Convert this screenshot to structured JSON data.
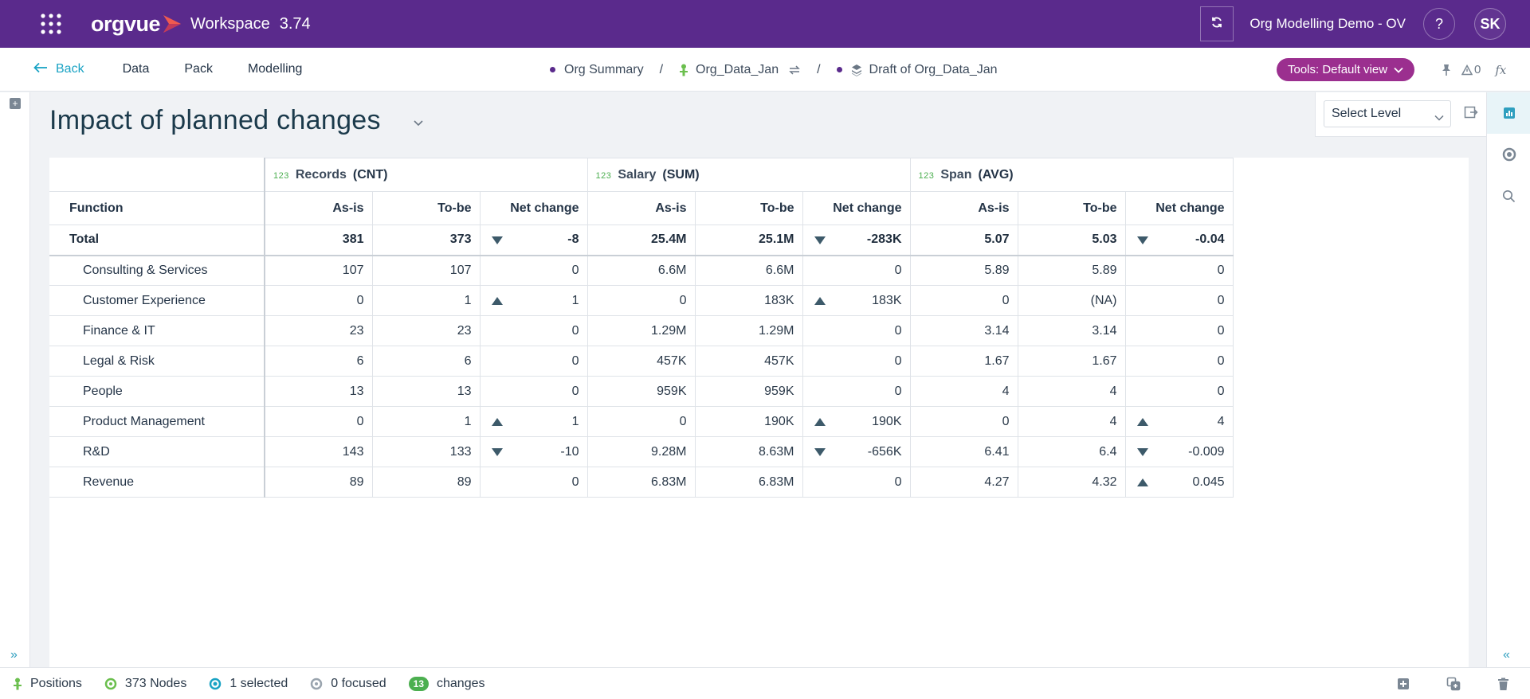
{
  "topbar": {
    "logo_text": "orgvue",
    "workspace_label": "Workspace",
    "version": "3.74",
    "org_title": "Org Modelling Demo - OV",
    "help_label": "?",
    "avatar_initials": "SK"
  },
  "nav": {
    "back_label": "Back",
    "items": [
      "Data",
      "Pack",
      "Modelling"
    ],
    "breadcrumb": {
      "summary": "Org Summary",
      "dataset": "Org_Data_Jan",
      "draft": "Draft of Org_Data_Jan",
      "separator": "/"
    },
    "tools_label": "Tools: Default view",
    "alert_count": "0",
    "fx_label": "fx"
  },
  "page": {
    "title": "Impact of planned changes",
    "level_select": "Select Level"
  },
  "table": {
    "function_header": "Function",
    "type_marker": "123",
    "groups": [
      {
        "name": "Records",
        "agg": "(CNT)"
      },
      {
        "name": "Salary",
        "agg": "(SUM)"
      },
      {
        "name": "Span",
        "agg": "(AVG)"
      }
    ],
    "subheaders": [
      "As-is",
      "To-be",
      "Net change"
    ],
    "total": {
      "label": "Total",
      "records": [
        "381",
        "373",
        "-8"
      ],
      "salary": [
        "25.4M",
        "25.1M",
        "-283K"
      ],
      "span": [
        "5.07",
        "5.03",
        "-0.04"
      ],
      "directions": [
        "down",
        "down",
        "down"
      ]
    },
    "rows": [
      {
        "name": "Consulting & Services",
        "records": [
          "107",
          "107",
          "0"
        ],
        "salary": [
          "6.6M",
          "6.6M",
          "0"
        ],
        "span": [
          "5.89",
          "5.89",
          "0"
        ],
        "directions": [
          "",
          "",
          ""
        ]
      },
      {
        "name": "Customer Experience",
        "records": [
          "0",
          "1",
          "1"
        ],
        "salary": [
          "0",
          "183K",
          "183K"
        ],
        "span": [
          "0",
          "(NA)",
          "0"
        ],
        "directions": [
          "up",
          "up",
          ""
        ]
      },
      {
        "name": "Finance & IT",
        "records": [
          "23",
          "23",
          "0"
        ],
        "salary": [
          "1.29M",
          "1.29M",
          "0"
        ],
        "span": [
          "3.14",
          "3.14",
          "0"
        ],
        "directions": [
          "",
          "",
          ""
        ]
      },
      {
        "name": "Legal & Risk",
        "records": [
          "6",
          "6",
          "0"
        ],
        "salary": [
          "457K",
          "457K",
          "0"
        ],
        "span": [
          "1.67",
          "1.67",
          "0"
        ],
        "directions": [
          "",
          "",
          ""
        ]
      },
      {
        "name": "People",
        "records": [
          "13",
          "13",
          "0"
        ],
        "salary": [
          "959K",
          "959K",
          "0"
        ],
        "span": [
          "4",
          "4",
          "0"
        ],
        "directions": [
          "",
          "",
          ""
        ]
      },
      {
        "name": "Product Management",
        "records": [
          "0",
          "1",
          "1"
        ],
        "salary": [
          "0",
          "190K",
          "190K"
        ],
        "span": [
          "0",
          "4",
          "4"
        ],
        "directions": [
          "up",
          "up",
          "up"
        ]
      },
      {
        "name": "R&D",
        "records": [
          "143",
          "133",
          "-10"
        ],
        "salary": [
          "9.28M",
          "8.63M",
          "-656K"
        ],
        "span": [
          "6.41",
          "6.4",
          "-0.009"
        ],
        "directions": [
          "down",
          "down",
          "down"
        ]
      },
      {
        "name": "Revenue",
        "records": [
          "89",
          "89",
          "0"
        ],
        "salary": [
          "6.83M",
          "6.83M",
          "0"
        ],
        "span": [
          "4.27",
          "4.32",
          "0.045"
        ],
        "directions": [
          "",
          "",
          "up"
        ]
      }
    ]
  },
  "status": {
    "positions": "Positions",
    "nodes": "373 Nodes",
    "selected": "1 selected",
    "focused": "0 focused",
    "changes_count": "13",
    "changes_label": "changes"
  },
  "colors": {
    "topbar": "#5a2a8c",
    "accent": "#1aa3c4",
    "tools_button": "#9b2f8f",
    "success": "#4caf50"
  },
  "icons": [
    "apps-grid-icon",
    "logo-arrow-icon",
    "refresh-icon",
    "back-arrow-icon",
    "dataset-icon",
    "swap-icon",
    "layers-icon",
    "chevron-down-icon",
    "pin-icon",
    "alert-icon",
    "chart-icon",
    "circle-icon",
    "search-icon",
    "export-icon",
    "expand-icon",
    "collapse-icon",
    "add-icon",
    "copy-icon",
    "delete-icon"
  ]
}
